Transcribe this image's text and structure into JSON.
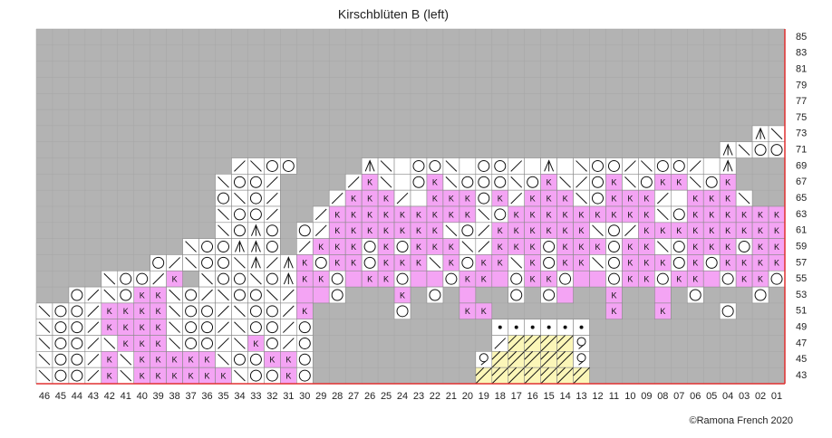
{
  "title": "Kirschblüten B (left)",
  "credit": "©Ramona French 2020",
  "stitch_text": "K",
  "columns": [
    "46",
    "45",
    "44",
    "43",
    "42",
    "41",
    "40",
    "39",
    "38",
    "37",
    "36",
    "35",
    "34",
    "33",
    "32",
    "31",
    "30",
    "29",
    "28",
    "27",
    "26",
    "25",
    "24",
    "23",
    "22",
    "21",
    "20",
    "19",
    "18",
    "17",
    "16",
    "15",
    "14",
    "13",
    "12",
    "11",
    "10",
    "09",
    "08",
    "07",
    "06",
    "05",
    "04",
    "03",
    "02",
    "01"
  ],
  "rows": [
    {
      "label": "85",
      "cells": ".............................................."
    },
    {
      "label": "83",
      "cells": ".............................................."
    },
    {
      "label": "81",
      "cells": ".............................................."
    },
    {
      "label": "79",
      "cells": ".............................................."
    },
    {
      "label": "77",
      "cells": ".............................................."
    },
    {
      "label": "75",
      "cells": ".............................................."
    },
    {
      "label": "73",
      "cells": "............................................ab"
    },
    {
      "label": "71",
      "cells": "..........................................aboo"
    },
    {
      "label": "69",
      "cells": "............fboo....abwoobwoofwawboofboofwa..."
    },
    {
      "label": "67",
      "cells": "...........boof....fkbwokbooobokbfokbokkbok..."
    },
    {
      "label": "65",
      "cells": "...........obof...fkkkfwkkkokfkkkbokkkfwkkkb.."
    },
    {
      "label": "63",
      "cells": "...........boof..fkkkkkkkkkbokkkkkkkkkbokkkkkk"
    },
    {
      "label": "61",
      "cells": "...........boao.ofkkkkkkkbofkkkkkkbofkkkkkkkkk"
    },
    {
      "label": "59",
      "cells": ".........booaao.fkkkokokkkbfkkkokkkokkbokkkokk"
    },
    {
      "label": "57",
      "cells": ".......ofboobafakokkokkkbkokkbkokkbokkkokokkkk"
    },
    {
      "label": "55",
      "cells": "....boofk.booboakkopkkoppokkpokkoppokkokkpokko"
    },
    {
      "label": "53",
      "cells": "..ofbokkbofboobfppo...k.o.p..o.op..k..p.o...o."
    },
    {
      "label": "51",
      "cells": "boofkkkkboofboofk.....o...kk.......k..k...o..."
    },
    {
      "label": "49",
      "cells": "boofkkkkboofboofo...........******............"
    },
    {
      "label": "47",
      "cells": "boofbkkkboofbkofo...........fyyyyQ............"
    },
    {
      "label": "45",
      "cells": "boofkbkkkkkbookko..........QyyyyyQ............"
    },
    {
      "label": "43",
      "cells": "boofkbkkkkkkbooko..........yyyyyyy............"
    }
  ]
}
